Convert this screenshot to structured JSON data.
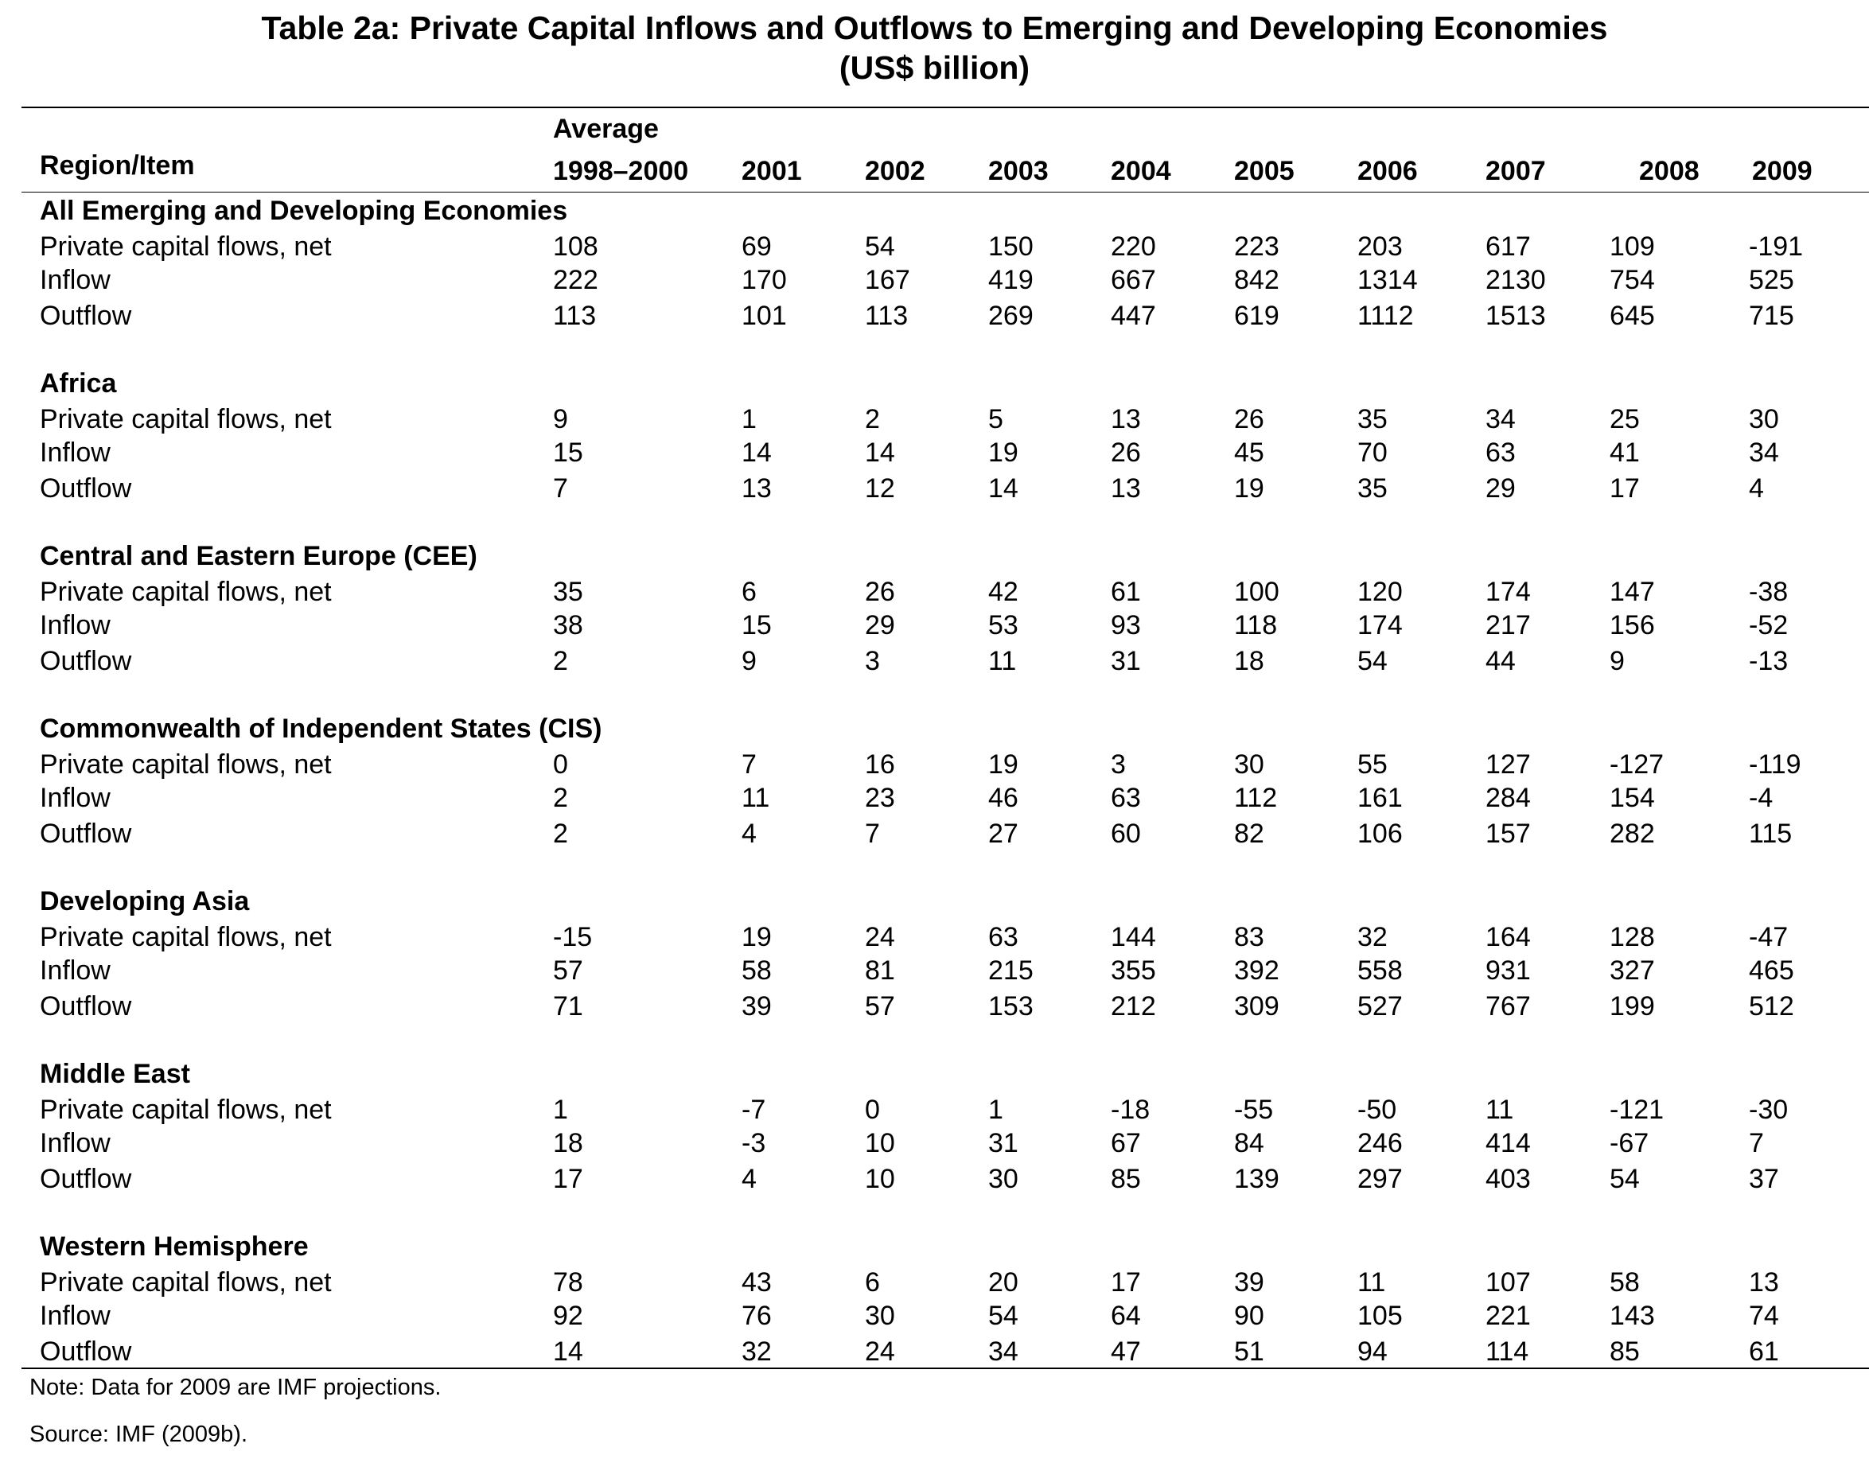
{
  "title": "Table 2a: Private Capital Inflows and Outflows to Emerging and Developing Economies",
  "subtitle": "(US$ billion)",
  "header": {
    "region_item": "Region/Item",
    "average_line1": "Average",
    "columns": [
      "1998–2000",
      "2001",
      "2002",
      "2003",
      "2004",
      "2005",
      "2006",
      "2007",
      "2008",
      "2009"
    ]
  },
  "sections": [
    {
      "name": "All Emerging and Developing Economies",
      "rows": [
        {
          "label": "Private capital flows, net",
          "values": [
            "108",
            "69",
            "54",
            "150",
            "220",
            "223",
            "203",
            "617",
            "109",
            "-191"
          ]
        },
        {
          "label": "Inflow",
          "values": [
            "222",
            "170",
            "167",
            "419",
            "667",
            "842",
            "1314",
            "2130",
            "754",
            "525"
          ]
        },
        {
          "label": "Outflow",
          "values": [
            "113",
            "101",
            "113",
            "269",
            "447",
            "619",
            "1112",
            "1513",
            "645",
            "715"
          ]
        }
      ]
    },
    {
      "name": "Africa",
      "rows": [
        {
          "label": "Private capital flows, net",
          "values": [
            "9",
            "1",
            "2",
            "5",
            "13",
            "26",
            "35",
            "34",
            "25",
            "30"
          ]
        },
        {
          "label": "Inflow",
          "values": [
            "15",
            "14",
            "14",
            "19",
            "26",
            "45",
            "70",
            "63",
            "41",
            "34"
          ]
        },
        {
          "label": "Outflow",
          "values": [
            "7",
            "13",
            "12",
            "14",
            "13",
            "19",
            "35",
            "29",
            "17",
            "4"
          ]
        }
      ]
    },
    {
      "name": "Central and Eastern Europe (CEE)",
      "rows": [
        {
          "label": "Private capital flows, net",
          "values": [
            "35",
            "6",
            "26",
            "42",
            "61",
            "100",
            "120",
            "174",
            "147",
            "-38"
          ]
        },
        {
          "label": "Inflow",
          "values": [
            "38",
            "15",
            "29",
            "53",
            "93",
            "118",
            "174",
            "217",
            "156",
            "-52"
          ]
        },
        {
          "label": "Outflow",
          "values": [
            "2",
            "9",
            "3",
            "11",
            "31",
            "18",
            "54",
            "44",
            "9",
            "-13"
          ]
        }
      ]
    },
    {
      "name": "Commonwealth of Independent States (CIS)",
      "rows": [
        {
          "label": "Private capital flows, net",
          "values": [
            "0",
            "7",
            "16",
            "19",
            "3",
            "30",
            "55",
            "127",
            "-127",
            "-119"
          ]
        },
        {
          "label": "Inflow",
          "values": [
            "2",
            "11",
            "23",
            "46",
            "63",
            "112",
            "161",
            "284",
            "154",
            "-4"
          ]
        },
        {
          "label": "Outflow",
          "values": [
            "2",
            "4",
            "7",
            "27",
            "60",
            "82",
            "106",
            "157",
            "282",
            "115"
          ]
        }
      ]
    },
    {
      "name": "Developing Asia",
      "rows": [
        {
          "label": "Private capital flows, net",
          "values": [
            "-15",
            "19",
            "24",
            "63",
            "144",
            "83",
            "32",
            "164",
            "128",
            "-47"
          ]
        },
        {
          "label": "Inflow",
          "values": [
            "57",
            "58",
            "81",
            "215",
            "355",
            "392",
            "558",
            "931",
            "327",
            "465"
          ]
        },
        {
          "label": "Outflow",
          "values": [
            "71",
            "39",
            "57",
            "153",
            "212",
            "309",
            "527",
            "767",
            "199",
            "512"
          ]
        }
      ]
    },
    {
      "name": "Middle East",
      "rows": [
        {
          "label": "Private capital flows, net",
          "values": [
            "1",
            "-7",
            "0",
            "1",
            "-18",
            "-55",
            "-50",
            "11",
            "-121",
            "-30"
          ]
        },
        {
          "label": "Inflow",
          "values": [
            "18",
            "-3",
            "10",
            "31",
            "67",
            "84",
            "246",
            "414",
            "-67",
            "7"
          ]
        },
        {
          "label": "Outflow",
          "values": [
            "17",
            "4",
            "10",
            "30",
            "85",
            "139",
            "297",
            "403",
            "54",
            "37"
          ]
        }
      ]
    },
    {
      "name": "Western Hemisphere",
      "rows": [
        {
          "label": "Private capital flows, net",
          "values": [
            "78",
            "43",
            "6",
            "20",
            "17",
            "39",
            "11",
            "107",
            "58",
            "13"
          ]
        },
        {
          "label": "Inflow",
          "values": [
            "92",
            "76",
            "30",
            "54",
            "64",
            "90",
            "105",
            "221",
            "143",
            "74"
          ]
        },
        {
          "label": "Outflow",
          "values": [
            "14",
            "32",
            "24",
            "34",
            "47",
            "51",
            "94",
            "114",
            "85",
            "61"
          ]
        }
      ]
    }
  ],
  "note": "Note: Data for 2009 are IMF projections.",
  "source": "Source: IMF (2009b)."
}
